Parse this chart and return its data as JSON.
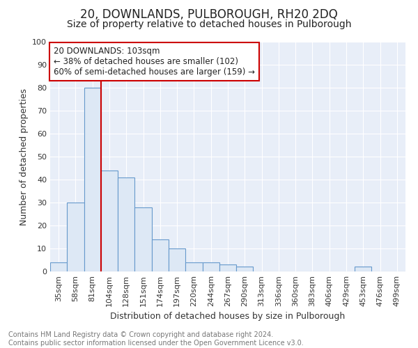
{
  "title": "20, DOWNLANDS, PULBOROUGH, RH20 2DQ",
  "subtitle": "Size of property relative to detached houses in Pulborough",
  "xlabel": "Distribution of detached houses by size in Pulborough",
  "ylabel": "Number of detached properties",
  "categories": [
    "35sqm",
    "58sqm",
    "81sqm",
    "104sqm",
    "128sqm",
    "151sqm",
    "174sqm",
    "197sqm",
    "220sqm",
    "244sqm",
    "267sqm",
    "290sqm",
    "313sqm",
    "336sqm",
    "360sqm",
    "383sqm",
    "406sqm",
    "429sqm",
    "453sqm",
    "476sqm",
    "499sqm"
  ],
  "values": [
    4,
    30,
    80,
    44,
    41,
    28,
    14,
    10,
    4,
    4,
    3,
    2,
    0,
    0,
    0,
    0,
    0,
    0,
    2,
    0,
    0
  ],
  "bar_color": "#dde8f5",
  "bar_edge_color": "#6699cc",
  "ylim": [
    0,
    100
  ],
  "yticks": [
    0,
    10,
    20,
    30,
    40,
    50,
    60,
    70,
    80,
    90,
    100
  ],
  "vline_color": "#cc0000",
  "vline_index": 3,
  "annotation_text": "20 DOWNLANDS: 103sqm\n← 38% of detached houses are smaller (102)\n60% of semi-detached houses are larger (159) →",
  "annotation_box_color": "#ffffff",
  "annotation_box_edge": "#cc0000",
  "footer_line1": "Contains HM Land Registry data © Crown copyright and database right 2024.",
  "footer_line2": "Contains public sector information licensed under the Open Government Licence v3.0.",
  "fig_background": "#ffffff",
  "plot_background": "#e8eef8",
  "grid_color": "#ffffff",
  "title_fontsize": 12,
  "subtitle_fontsize": 10,
  "axis_label_fontsize": 9,
  "tick_fontsize": 8,
  "annotation_fontsize": 8.5,
  "footer_fontsize": 7
}
